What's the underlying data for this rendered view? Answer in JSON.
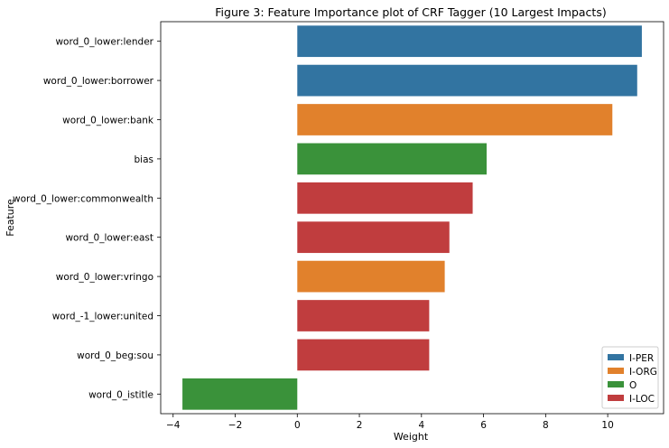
{
  "chart_data": {
    "type": "bar",
    "orientation": "horizontal",
    "title": "Figure 3: Feature Importance plot of CRF Tagger (10 Largest Impacts)",
    "xlabel": "Weight",
    "ylabel": "Feature",
    "xlim": [
      -4.4,
      11.8
    ],
    "xticks": [
      -4,
      -2,
      0,
      2,
      4,
      6,
      8,
      10
    ],
    "xtick_labels": [
      "−4",
      "−2",
      "0",
      "2",
      "4",
      "6",
      "8",
      "10"
    ],
    "grid": false,
    "legend_position": "lower-right",
    "legend": [
      {
        "label": "I-PER",
        "color": "#3274a1"
      },
      {
        "label": "I-ORG",
        "color": "#e1812c"
      },
      {
        "label": "O",
        "color": "#3a923a"
      },
      {
        "label": "I-LOC",
        "color": "#c03d3e"
      }
    ],
    "bars": [
      {
        "feature": "word_0_lower:lender",
        "value": 11.1,
        "class": "I-PER"
      },
      {
        "feature": "word_0_lower:borrower",
        "value": 10.95,
        "class": "I-PER"
      },
      {
        "feature": "word_0_lower:bank",
        "value": 10.15,
        "class": "I-ORG"
      },
      {
        "feature": "bias",
        "value": 6.1,
        "class": "O"
      },
      {
        "feature": "word_0_lower:commonwealth",
        "value": 5.65,
        "class": "I-LOC"
      },
      {
        "feature": "word_0_lower:east",
        "value": 4.9,
        "class": "I-LOC"
      },
      {
        "feature": "word_0_lower:vringo",
        "value": 4.75,
        "class": "I-ORG"
      },
      {
        "feature": "word_-1_lower:united",
        "value": 4.25,
        "class": "I-LOC"
      },
      {
        "feature": "word_0_beg:sou",
        "value": 4.25,
        "class": "I-LOC"
      },
      {
        "feature": "word_0_istitle",
        "value": -3.7,
        "class": "O"
      }
    ]
  }
}
